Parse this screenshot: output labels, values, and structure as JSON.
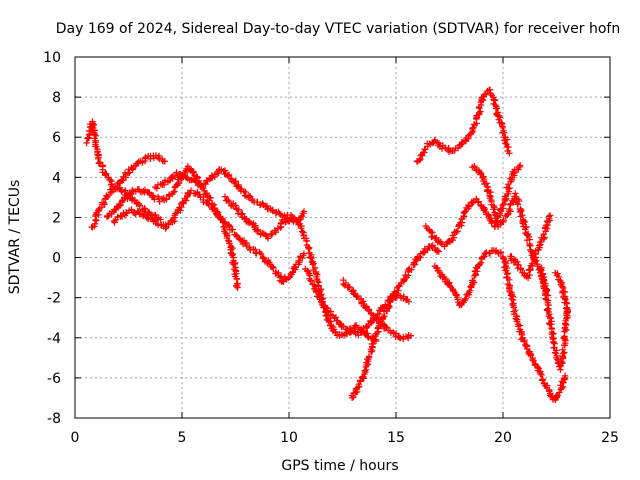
{
  "chart_data": {
    "type": "scatter",
    "title": "Day 169 of 2024, Sidereal Day-to-day VTEC variation (SDTVAR) for receiver hofn",
    "xlabel": "GPS time / hours",
    "ylabel": "SDTVAR / TECUs",
    "xlim": [
      0,
      25
    ],
    "ylim": [
      -8,
      10
    ],
    "xticks": [
      "0",
      "5",
      "10",
      "15",
      "20",
      "25"
    ],
    "yticks": [
      "-8",
      "-6",
      "-4",
      "-2",
      "0",
      "2",
      "4",
      "6",
      "8",
      "10"
    ],
    "grid": true,
    "marker": "+",
    "color": "#ff0000",
    "series": [
      {
        "x": [
          0.6,
          0.7,
          0.8,
          0.9,
          1.0,
          1.1,
          1.3,
          1.5,
          1.7,
          2.0,
          2.3,
          2.6,
          3.0,
          3.3,
          3.6,
          4.0
        ],
        "y": [
          5.8,
          6.5,
          6.8,
          6.2,
          5.4,
          4.9,
          4.4,
          4.0,
          3.7,
          3.5,
          3.3,
          3.0,
          2.6,
          2.3,
          2.1,
          1.9
        ]
      },
      {
        "x": [
          0.8,
          1.0,
          1.2,
          1.5,
          1.8,
          2.1,
          2.4,
          2.8,
          3.1,
          3.5,
          3.9,
          4.2
        ],
        "y": [
          1.5,
          2.0,
          2.5,
          3.0,
          3.4,
          3.8,
          4.2,
          4.6,
          4.8,
          5.0,
          5.0,
          4.8
        ]
      },
      {
        "x": [
          1.5,
          1.8,
          2.1,
          2.5,
          2.9,
          3.3,
          3.7,
          4.1,
          4.5,
          4.9,
          5.3,
          5.7,
          6.1,
          6.5,
          6.9,
          7.3,
          7.6
        ],
        "y": [
          2.0,
          2.3,
          2.7,
          3.1,
          3.4,
          3.3,
          3.0,
          2.8,
          3.2,
          3.9,
          4.5,
          4.0,
          3.2,
          2.5,
          1.7,
          0.5,
          -1.5
        ]
      },
      {
        "x": [
          1.8,
          2.2,
          2.6,
          3.0,
          3.4,
          3.8,
          4.2,
          4.6,
          5.0,
          5.4,
          5.8,
          6.3,
          6.8,
          7.3,
          7.8,
          8.3,
          8.8,
          9.3,
          9.7,
          10.1,
          10.4,
          10.7
        ],
        "y": [
          1.8,
          2.1,
          2.3,
          2.2,
          2.0,
          1.8,
          1.5,
          1.9,
          2.6,
          3.3,
          3.1,
          2.6,
          2.0,
          1.4,
          0.8,
          0.4,
          0.0,
          -0.6,
          -1.2,
          -0.8,
          -0.3,
          0.2
        ]
      },
      {
        "x": [
          3.8,
          4.3,
          4.8,
          5.3,
          5.8,
          6.3,
          6.8,
          7.3,
          7.8,
          8.3,
          8.8,
          9.3,
          9.8,
          10.2,
          10.5,
          10.7
        ],
        "y": [
          3.5,
          3.8,
          4.2,
          4.0,
          3.6,
          3.9,
          4.4,
          4.0,
          3.3,
          2.9,
          2.6,
          2.3,
          2.0,
          1.8,
          1.9,
          2.3
        ]
      },
      {
        "x": [
          7.0,
          7.5,
          8.0,
          8.5,
          9.0,
          9.5,
          10.0,
          10.5,
          10.9,
          11.3,
          11.6,
          11.9,
          12.2,
          12.5,
          12.8,
          13.1,
          13.4,
          13.7,
          14.0
        ],
        "y": [
          3.0,
          2.5,
          1.9,
          1.4,
          1.0,
          1.5,
          2.1,
          1.7,
          0.6,
          -1.0,
          -2.3,
          -3.3,
          -3.8,
          -3.9,
          -3.7,
          -3.4,
          -3.6,
          -3.9,
          -4.1
        ]
      },
      {
        "x": [
          10.8,
          11.2,
          11.6,
          12.0,
          12.4,
          12.8,
          13.2,
          13.6,
          14.0,
          14.4,
          14.8,
          15.2,
          15.6
        ],
        "y": [
          -0.5,
          -1.5,
          -2.4,
          -2.9,
          -3.3,
          -3.6,
          -3.8,
          -3.5,
          -3.0,
          -2.5,
          -2.0,
          -1.9,
          -2.2
        ]
      },
      {
        "x": [
          12.9,
          13.2,
          13.5,
          13.8,
          14.1,
          14.4,
          14.8,
          15.2,
          15.6,
          16.0,
          16.4,
          16.7,
          17.0
        ],
        "y": [
          -7.0,
          -6.5,
          -5.8,
          -4.8,
          -3.8,
          -2.9,
          -2.1,
          -1.4,
          -0.7,
          -0.1,
          0.4,
          0.6,
          0.3
        ]
      },
      {
        "x": [
          12.5,
          12.8,
          13.1,
          13.4,
          13.7,
          14.0,
          14.3,
          14.6,
          14.9,
          15.2,
          15.5,
          15.7
        ],
        "y": [
          -1.2,
          -1.5,
          -1.8,
          -2.2,
          -2.6,
          -3.0,
          -3.3,
          -3.6,
          -3.8,
          -4.0,
          -4.0,
          -3.9
        ]
      },
      {
        "x": [
          16.0,
          16.4,
          16.8,
          17.2,
          17.6,
          18.0,
          18.4,
          18.8,
          19.1,
          19.4,
          19.7,
          20.0,
          20.3
        ],
        "y": [
          4.7,
          5.5,
          5.8,
          5.5,
          5.3,
          5.6,
          6.0,
          7.0,
          8.2,
          8.3,
          7.4,
          6.3,
          5.2
        ]
      },
      {
        "x": [
          16.4,
          16.8,
          17.2,
          17.6,
          18.0,
          18.4,
          18.8,
          19.2,
          19.6,
          20.0,
          20.4,
          20.8
        ],
        "y": [
          1.5,
          1.0,
          0.6,
          0.9,
          1.6,
          2.6,
          2.9,
          2.2,
          1.6,
          2.6,
          4.0,
          4.6
        ]
      },
      {
        "x": [
          16.8,
          17.2,
          17.6,
          18.0,
          18.4,
          18.8,
          19.2,
          19.6,
          20.0,
          20.3,
          20.6,
          20.9,
          21.2,
          21.5,
          21.8,
          22.1,
          22.4,
          22.7,
          22.9
        ],
        "y": [
          -0.5,
          -1.0,
          -1.5,
          -2.4,
          -1.8,
          -0.5,
          0.2,
          0.4,
          0.1,
          -1.4,
          -2.9,
          -4.0,
          -4.7,
          -5.3,
          -5.9,
          -6.6,
          -7.2,
          -6.6,
          -5.9
        ]
      },
      {
        "x": [
          18.6,
          19.0,
          19.4,
          19.8,
          20.2,
          20.6,
          21.0,
          21.4,
          21.8,
          22.1
        ],
        "y": [
          4.6,
          4.1,
          3.1,
          1.6,
          2.1,
          3.1,
          1.6,
          0.1,
          -0.9,
          -1.9
        ]
      },
      {
        "x": [
          20.3,
          20.7,
          21.1,
          21.5,
          21.9,
          22.2
        ],
        "y": [
          0.1,
          -0.4,
          -1.0,
          0.1,
          1.1,
          2.1
        ]
      },
      {
        "x": [
          21.8,
          22.1,
          22.4,
          22.7,
          22.9,
          23.0
        ],
        "y": [
          -0.5,
          -2.5,
          -4.5,
          -5.5,
          -4.0,
          -2.5
        ]
      },
      {
        "x": [
          22.5,
          22.7,
          22.8,
          22.9,
          23.0
        ],
        "y": [
          -0.8,
          -1.2,
          -1.6,
          -2.0,
          -3.0
        ]
      }
    ]
  }
}
